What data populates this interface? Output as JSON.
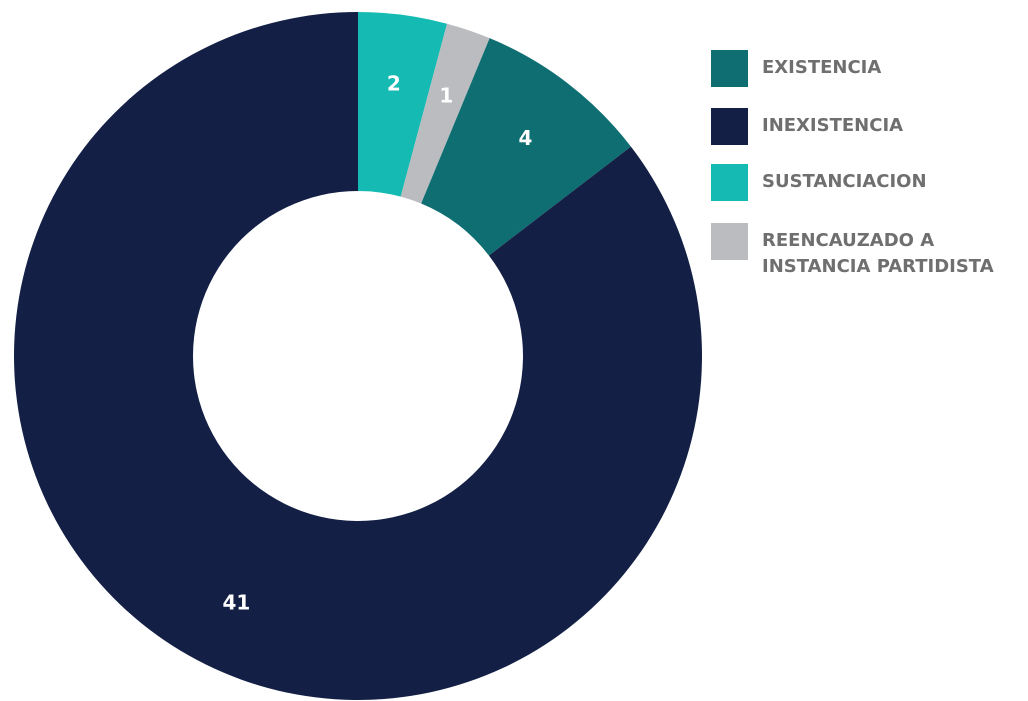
{
  "chart_data": {
    "type": "pie",
    "donut": true,
    "legend_position": "right",
    "slices": [
      {
        "name": "SUSTANCIACION",
        "value": 2,
        "color": "#15bbb3"
      },
      {
        "name": "REENCAUZADO A\nINSTANCIA PARTIDISTA",
        "value": 1,
        "color": "#babcbf"
      },
      {
        "name": "EXISTENCIA",
        "value": 4,
        "color": "#0e6e72"
      },
      {
        "name": "INEXISTENCIA",
        "value": 41,
        "color": "#131f45"
      }
    ],
    "legend": [
      {
        "label": "EXISTENCIA",
        "color": "#0e6e72"
      },
      {
        "label": "INEXISTENCIA",
        "color": "#131f45"
      },
      {
        "label": "SUSTANCIACION",
        "color": "#15bbb3"
      },
      {
        "label": "REENCAUZADO A\nINSTANCIA PARTIDISTA",
        "color": "#babcbf"
      }
    ]
  }
}
